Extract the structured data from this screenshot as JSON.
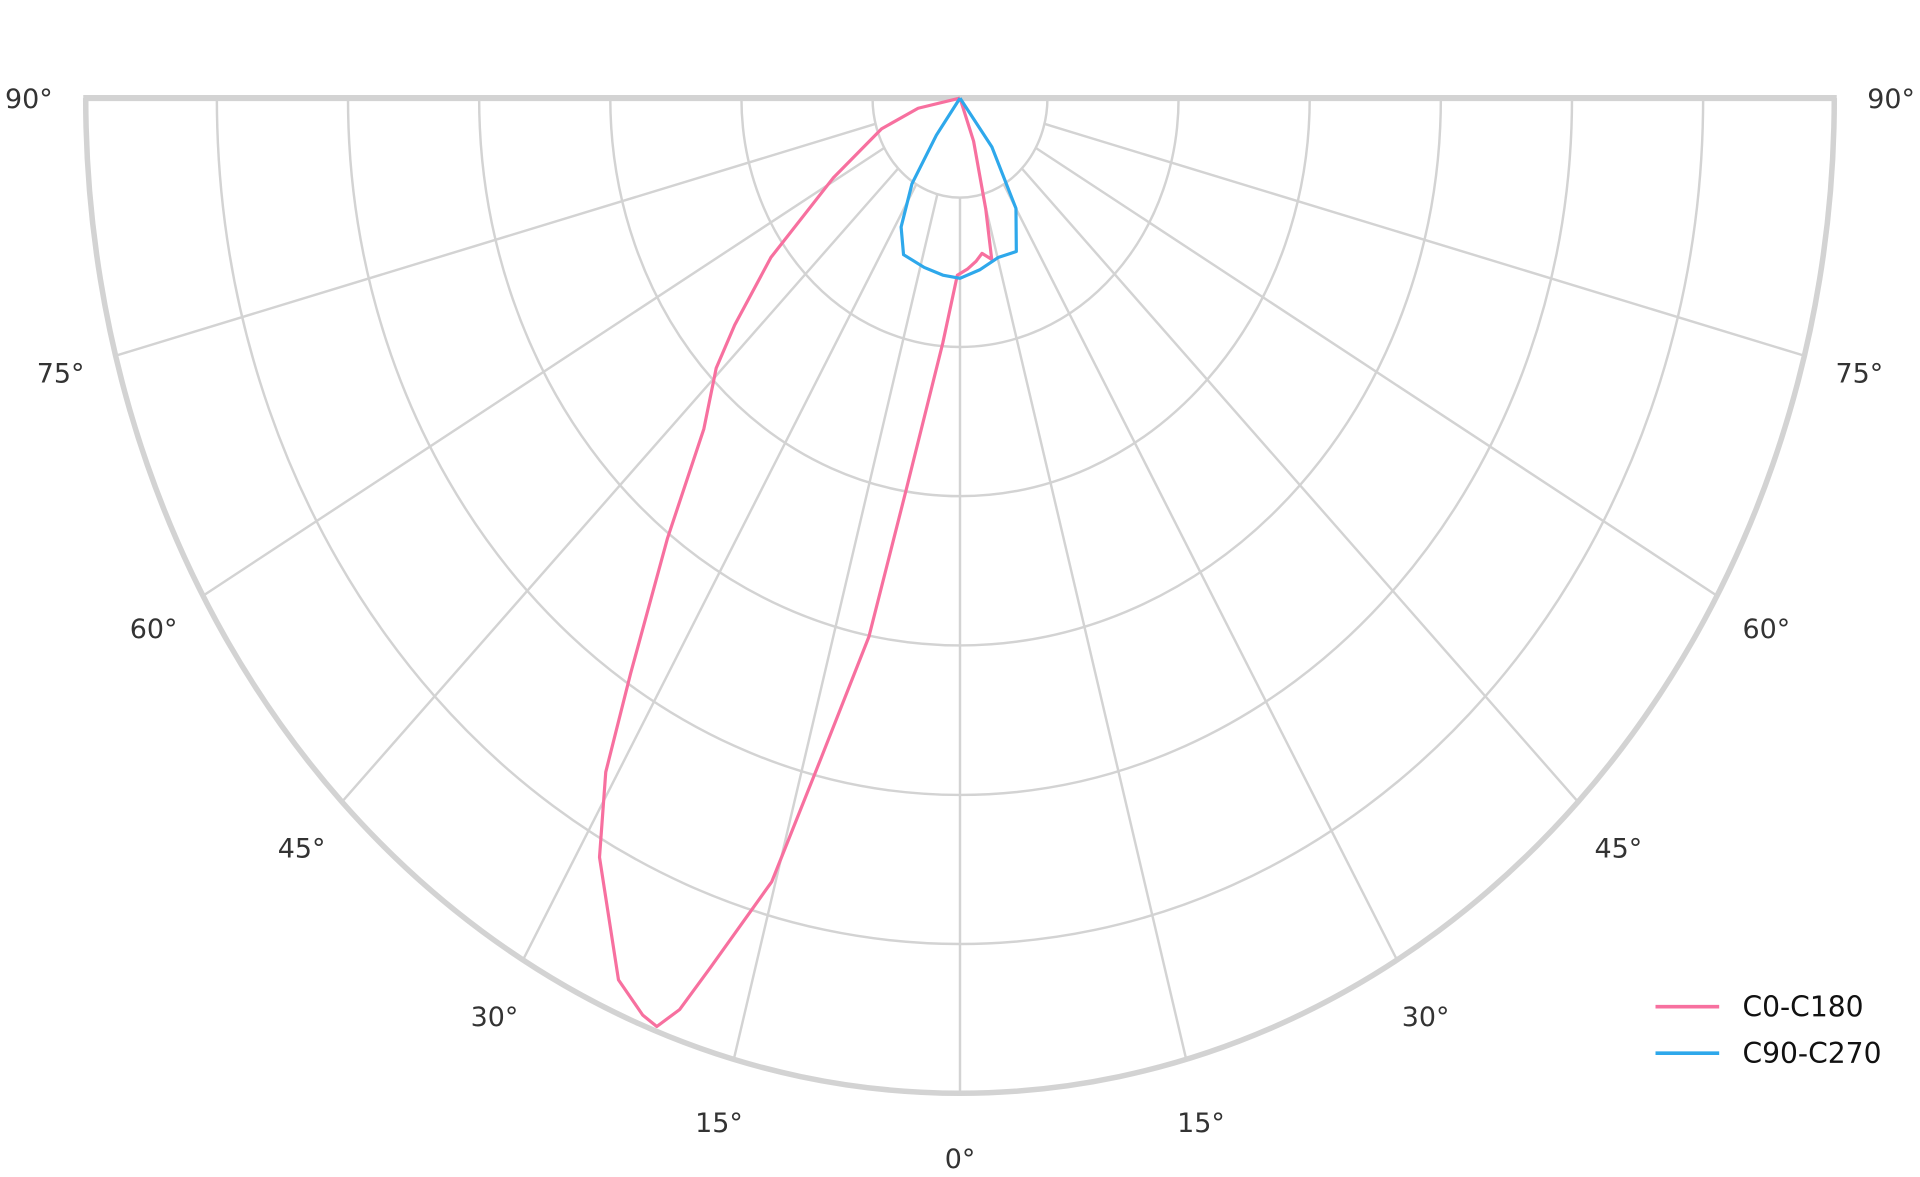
{
  "chart_data": {
    "type": "polar",
    "title": "",
    "angle_unit": "degrees",
    "angle_ticks": [
      90,
      75,
      60,
      45,
      30,
      15,
      0,
      15,
      30,
      45,
      60,
      75,
      90
    ],
    "angle_tick_labels": [
      "90°",
      "75°",
      "60°",
      "45°",
      "30°",
      "15°",
      "0°",
      "15°",
      "30°",
      "45°",
      "60°",
      "75°",
      "90°"
    ],
    "radial_rings": [
      0.1,
      0.25,
      0.4,
      0.55,
      0.7,
      0.85,
      1.0
    ],
    "radial_range": [
      0,
      1.0
    ],
    "radial_tick_labels_shown": false,
    "grid": true,
    "legend_position": "bottom-right",
    "series": [
      {
        "name": "C0-C180",
        "color": "#f7709f",
        "points": [
          [
            -90,
            0
          ],
          [
            -78,
            0.049
          ],
          [
            -71,
            0.095
          ],
          [
            -61,
            0.166
          ],
          [
            -53.5,
            0.269
          ],
          [
            -48.5,
            0.344
          ],
          [
            -45.8,
            0.389
          ],
          [
            -41.4,
            0.443
          ],
          [
            -37.1,
            0.555
          ],
          [
            -33.1,
            0.69
          ],
          [
            -30.9,
            0.789
          ],
          [
            -28.4,
            0.867
          ],
          [
            -23.8,
            0.968
          ],
          [
            -21.5,
            0.99
          ],
          [
            -20.4,
            0.995
          ],
          [
            -19.3,
            0.97
          ],
          [
            -18.1,
            0.919
          ],
          [
            -15.3,
            0.816
          ],
          [
            -13.5,
            0.683
          ],
          [
            -10.9,
            0.551
          ],
          [
            -8.9,
            0.399
          ],
          [
            -4.6,
            0.247
          ],
          [
            -1,
            0.178
          ],
          [
            2.8,
            0.172
          ],
          [
            6.4,
            0.165
          ],
          [
            9.2,
            0.158
          ],
          [
            12.6,
            0.166
          ],
          [
            14.8,
            0.115
          ],
          [
            19.8,
            0.046
          ],
          [
            25,
            0
          ]
        ]
      },
      {
        "name": "C90-C270",
        "color": "#2ea8eb",
        "points": [
          [
            -42,
            0
          ],
          [
            -36,
            0.046
          ],
          [
            -32.6,
            0.102
          ],
          [
            -27.5,
            0.146
          ],
          [
            -22.3,
            0.17
          ],
          [
            -13.5,
            0.175
          ],
          [
            -6.3,
            0.179
          ],
          [
            0,
            0.181
          ],
          [
            7.4,
            0.174
          ],
          [
            15.2,
            0.166
          ],
          [
            22.7,
            0.167
          ],
          [
            30,
            0.128
          ],
          [
            36.6,
            0.061
          ],
          [
            42,
            0
          ]
        ]
      }
    ]
  }
}
